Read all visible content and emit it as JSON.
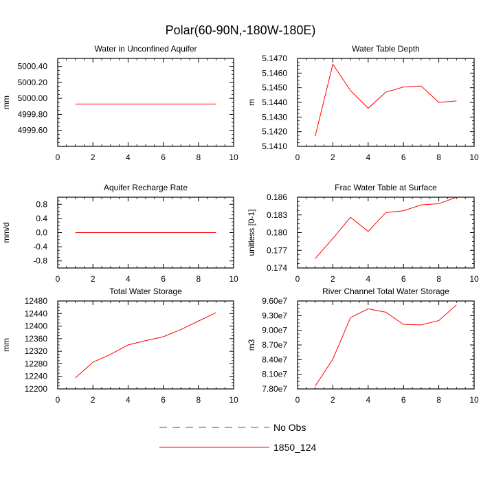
{
  "figure": {
    "title": "Polar(60-90N,-180W-180E)"
  },
  "legend": {
    "entries": [
      {
        "label": "No Obs",
        "color": "#4a4aa8",
        "style": "dashed"
      },
      {
        "label": "1850_124",
        "color": "#ff0000",
        "style": "solid"
      }
    ]
  },
  "chart_data": [
    {
      "type": "line",
      "title": "Water in Unconfined Aquifer",
      "ylabel": "mm",
      "xlim": [
        0,
        10
      ],
      "ylim": [
        4999.4,
        5000.5
      ],
      "xticks": [
        0,
        2,
        4,
        6,
        8,
        10
      ],
      "xtick_labels": [
        "0",
        "2",
        "4",
        "6",
        "8",
        "10"
      ],
      "yticks": [
        4999.6,
        4999.8,
        5000.0,
        5000.2,
        5000.4
      ],
      "ytick_labels": [
        "4999.60",
        "4999.80",
        "5000.00",
        "5000.20",
        "5000.40"
      ],
      "series": [
        {
          "name": "1850_124",
          "x": [
            1,
            2,
            3,
            4,
            5,
            6,
            7,
            8,
            9
          ],
          "values": [
            4999.93,
            4999.93,
            4999.93,
            4999.93,
            4999.93,
            4999.93,
            4999.93,
            4999.93,
            4999.93
          ]
        }
      ]
    },
    {
      "type": "line",
      "title": "Water Table Depth",
      "ylabel": "m",
      "xlim": [
        0,
        10
      ],
      "ylim": [
        5.141,
        5.147
      ],
      "xticks": [
        0,
        2,
        4,
        6,
        8,
        10
      ],
      "xtick_labels": [
        "0",
        "2",
        "4",
        "6",
        "8",
        "10"
      ],
      "yticks": [
        5.141,
        5.142,
        5.143,
        5.144,
        5.145,
        5.146,
        5.147
      ],
      "ytick_labels": [
        "5.1410",
        "5.1420",
        "5.1430",
        "5.1440",
        "5.1450",
        "5.1460",
        "5.1470"
      ],
      "series": [
        {
          "name": "1850_124",
          "x": [
            1,
            2,
            3,
            4,
            5,
            6,
            7,
            8,
            9
          ],
          "values": [
            5.1417,
            5.1466,
            5.1448,
            5.1436,
            5.1447,
            5.14505,
            5.14512,
            5.144,
            5.1441
          ]
        }
      ]
    },
    {
      "type": "line",
      "title": "Aquifer Recharge Rate",
      "ylabel": "mm/d",
      "xlim": [
        0,
        10
      ],
      "ylim": [
        -1.0,
        1.0
      ],
      "xticks": [
        0,
        2,
        4,
        6,
        8,
        10
      ],
      "xtick_labels": [
        "0",
        "2",
        "4",
        "6",
        "8",
        "10"
      ],
      "yticks": [
        -0.8,
        -0.4,
        0.0,
        0.4,
        0.8
      ],
      "ytick_labels": [
        "-0.8",
        "-0.4",
        "0.0",
        "0.4",
        "0.8"
      ],
      "series": [
        {
          "name": "1850_124",
          "x": [
            1,
            2,
            3,
            4,
            5,
            6,
            7,
            8,
            9
          ],
          "values": [
            0,
            0,
            0,
            0,
            0,
            0,
            0,
            0,
            0
          ]
        }
      ]
    },
    {
      "type": "line",
      "title": "Frac Water Table at Surface",
      "ylabel": "unitless [0-1]",
      "xlim": [
        0,
        10
      ],
      "ylim": [
        0.174,
        0.186
      ],
      "xticks": [
        0,
        2,
        4,
        6,
        8,
        10
      ],
      "xtick_labels": [
        "0",
        "2",
        "4",
        "6",
        "8",
        "10"
      ],
      "yticks": [
        0.174,
        0.177,
        0.18,
        0.183,
        0.186
      ],
      "ytick_labels": [
        "0.174",
        "0.177",
        "0.180",
        "0.183",
        "0.186"
      ],
      "series": [
        {
          "name": "1850_124",
          "x": [
            1,
            2,
            3,
            4,
            5,
            6,
            7,
            8,
            9
          ],
          "values": [
            0.1756,
            0.179,
            0.1826,
            0.1802,
            0.1834,
            0.1837,
            0.1847,
            0.1849,
            0.186
          ]
        }
      ]
    },
    {
      "type": "line",
      "title": "Total Water Storage",
      "ylabel": "mm",
      "xlim": [
        0,
        10
      ],
      "ylim": [
        12200,
        12480
      ],
      "xticks": [
        0,
        2,
        4,
        6,
        8,
        10
      ],
      "xtick_labels": [
        "0",
        "2",
        "4",
        "6",
        "8",
        "10"
      ],
      "yticks": [
        12200,
        12240,
        12280,
        12320,
        12360,
        12400,
        12440,
        12480
      ],
      "ytick_labels": [
        "12200",
        "12240",
        "12280",
        "12320",
        "12360",
        "12400",
        "12440",
        "12480"
      ],
      "series": [
        {
          "name": "1850_124",
          "x": [
            1,
            2,
            3,
            4,
            5,
            6,
            7,
            8,
            9
          ],
          "values": [
            12235,
            12285,
            12310,
            12340,
            12354,
            12366,
            12389,
            12416,
            12443
          ]
        }
      ]
    },
    {
      "type": "line",
      "title": "River Channel Total Water Storage",
      "ylabel": "m3",
      "xlim": [
        0,
        10
      ],
      "ylim": [
        78000000,
        96000000
      ],
      "xticks": [
        0,
        2,
        4,
        6,
        8,
        10
      ],
      "xtick_labels": [
        "0",
        "2",
        "4",
        "6",
        "8",
        "10"
      ],
      "yticks": [
        78000000,
        81000000,
        84000000,
        87000000,
        90000000,
        93000000,
        96000000
      ],
      "ytick_labels": [
        "7.80e7",
        "8.10e7",
        "8.40e7",
        "8.70e7",
        "9.00e7",
        "9.30e7",
        "9.60e7"
      ],
      "series": [
        {
          "name": "1850_124",
          "x": [
            1,
            2,
            3,
            4,
            5,
            6,
            7,
            8,
            9
          ],
          "values": [
            78600000,
            84100000,
            92600000,
            94400000,
            93700000,
            91200000,
            91100000,
            92000000,
            95200000
          ]
        }
      ]
    }
  ]
}
